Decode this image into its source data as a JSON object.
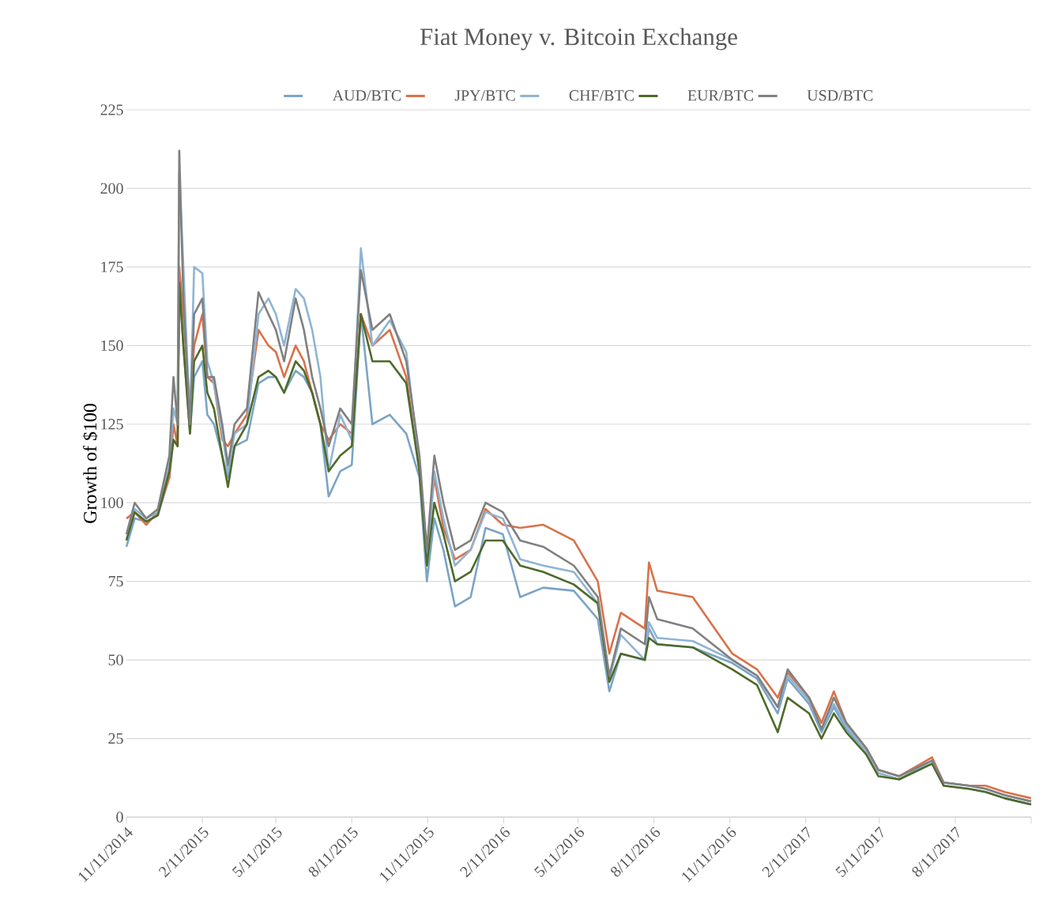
{
  "chart_data": {
    "type": "line",
    "title": "Fiat Money v. Bitcoin Exchange",
    "ylabel": "Growth of $100",
    "x": [
      "2014-11-11",
      "2014-11-21",
      "2014-12-05",
      "2014-12-19",
      "2015-01-02",
      "2015-01-07",
      "2015-01-12",
      "2015-01-14",
      "2015-01-19",
      "2015-01-27",
      "2015-02-01",
      "2015-02-11",
      "2015-02-17",
      "2015-02-25",
      "2015-03-07",
      "2015-03-14",
      "2015-03-22",
      "2015-04-06",
      "2015-04-20",
      "2015-05-02",
      "2015-05-11",
      "2015-05-21",
      "2015-06-04",
      "2015-06-14",
      "2015-06-24",
      "2015-07-04",
      "2015-07-14",
      "2015-07-28",
      "2015-08-11",
      "2015-08-22",
      "2015-09-05",
      "2015-09-26",
      "2015-10-16",
      "2015-11-01",
      "2015-11-10",
      "2015-11-19",
      "2015-11-30",
      "2015-12-14",
      "2016-01-02",
      "2016-01-20",
      "2016-02-10",
      "2016-03-02",
      "2016-03-30",
      "2016-05-06",
      "2016-06-04",
      "2016-06-18",
      "2016-07-02",
      "2016-07-31",
      "2016-08-05",
      "2016-08-15",
      "2016-09-27",
      "2016-11-14",
      "2016-12-14",
      "2017-01-08",
      "2017-01-20",
      "2017-02-15",
      "2017-03-02",
      "2017-03-17",
      "2017-04-01",
      "2017-04-25",
      "2017-05-10",
      "2017-06-04",
      "2017-07-14",
      "2017-07-28",
      "2017-08-28",
      "2017-09-17",
      "2017-10-10",
      "2017-11-11"
    ],
    "series": [
      {
        "name": "AUD/BTC",
        "color": "#7ba4c7",
        "values": [
          86,
          95,
          94,
          96,
          108,
          120,
          118,
          170,
          150,
          122,
          140,
          145,
          128,
          125,
          115,
          108,
          118,
          120,
          138,
          140,
          140,
          135,
          142,
          140,
          135,
          125,
          102,
          110,
          112,
          160,
          125,
          128,
          122,
          108,
          75,
          95,
          85,
          67,
          70,
          92,
          90,
          70,
          73,
          72,
          63,
          40,
          52,
          50,
          60,
          55,
          54,
          49,
          44,
          33,
          44,
          36,
          27,
          35,
          28,
          21,
          14,
          12,
          17,
          10,
          9,
          8,
          6,
          4
        ]
      },
      {
        "name": "JPY/BTC",
        "color": "#d9714a",
        "values": [
          95,
          97,
          93,
          97,
          108,
          125,
          118,
          175,
          160,
          130,
          150,
          160,
          140,
          138,
          120,
          118,
          122,
          128,
          155,
          150,
          148,
          140,
          150,
          145,
          135,
          125,
          120,
          125,
          122,
          160,
          150,
          155,
          140,
          110,
          85,
          108,
          92,
          82,
          85,
          98,
          93,
          92,
          93,
          88,
          75,
          52,
          65,
          60,
          81,
          72,
          70,
          52,
          47,
          38,
          46,
          38,
          30,
          40,
          30,
          22,
          15,
          13,
          19,
          11,
          10,
          10,
          8,
          6
        ]
      },
      {
        "name": "CHF/BTC",
        "color": "#8fb4d4",
        "values": [
          88,
          98,
          95,
          97,
          112,
          130,
          125,
          205,
          175,
          125,
          175,
          173,
          145,
          138,
          122,
          110,
          122,
          125,
          160,
          165,
          160,
          150,
          168,
          165,
          155,
          140,
          110,
          128,
          120,
          181,
          150,
          158,
          148,
          112,
          80,
          110,
          95,
          80,
          85,
          97,
          95,
          82,
          80,
          78,
          68,
          44,
          58,
          50,
          62,
          57,
          56,
          50,
          45,
          35,
          45,
          37,
          28,
          36,
          29,
          21,
          14,
          12,
          18,
          11,
          10,
          9,
          7,
          5
        ]
      },
      {
        "name": "EUR/BTC",
        "color": "#4e6a28",
        "values": [
          88,
          97,
          94,
          96,
          110,
          120,
          118,
          170,
          150,
          122,
          145,
          150,
          135,
          130,
          115,
          105,
          118,
          125,
          140,
          142,
          140,
          135,
          145,
          142,
          135,
          125,
          110,
          115,
          118,
          160,
          145,
          145,
          138,
          110,
          80,
          100,
          90,
          75,
          78,
          88,
          88,
          80,
          78,
          74,
          68,
          43,
          52,
          50,
          57,
          55,
          54,
          47,
          42,
          27,
          38,
          33,
          25,
          33,
          27,
          20,
          13,
          12,
          17,
          10,
          9,
          8,
          6,
          4
        ]
      },
      {
        "name": "USD/BTC",
        "color": "#808080",
        "values": [
          90,
          100,
          95,
          98,
          115,
          140,
          125,
          212,
          165,
          125,
          160,
          165,
          140,
          140,
          125,
          112,
          125,
          130,
          167,
          160,
          155,
          145,
          165,
          155,
          140,
          130,
          118,
          130,
          125,
          174,
          155,
          160,
          145,
          115,
          85,
          115,
          100,
          85,
          88,
          100,
          97,
          88,
          86,
          80,
          70,
          45,
          60,
          55,
          70,
          63,
          60,
          50,
          45,
          35,
          47,
          38,
          28,
          38,
          30,
          22,
          15,
          13,
          18,
          11,
          10,
          9,
          7,
          5
        ]
      }
    ],
    "xlim": [
      "2014-11-11",
      "2017-11-11"
    ],
    "xticks": [
      {
        "value": "2014-11-11",
        "label": "11/11/2014"
      },
      {
        "value": "2015-02-11",
        "label": "2/11/2015"
      },
      {
        "value": "2015-05-11",
        "label": "5/11/2015"
      },
      {
        "value": "2015-08-11",
        "label": "8/11/2015"
      },
      {
        "value": "2015-11-11",
        "label": "11/11/2015"
      },
      {
        "value": "2016-02-11",
        "label": "2/11/2016"
      },
      {
        "value": "2016-05-11",
        "label": "5/11/2016"
      },
      {
        "value": "2016-08-11",
        "label": "8/11/2016"
      },
      {
        "value": "2016-11-11",
        "label": "11/11/2016"
      },
      {
        "value": "2017-02-11",
        "label": "2/11/2017"
      },
      {
        "value": "2017-05-11",
        "label": "5/11/2017"
      },
      {
        "value": "2017-08-11",
        "label": "8/11/2017"
      },
      {
        "value": "2017-11-11",
        "label": null
      }
    ],
    "ylim": [
      0,
      225
    ],
    "yticks": [
      0,
      25,
      50,
      75,
      100,
      125,
      150,
      175,
      200,
      225
    ],
    "grid": "y",
    "legend": "top"
  }
}
